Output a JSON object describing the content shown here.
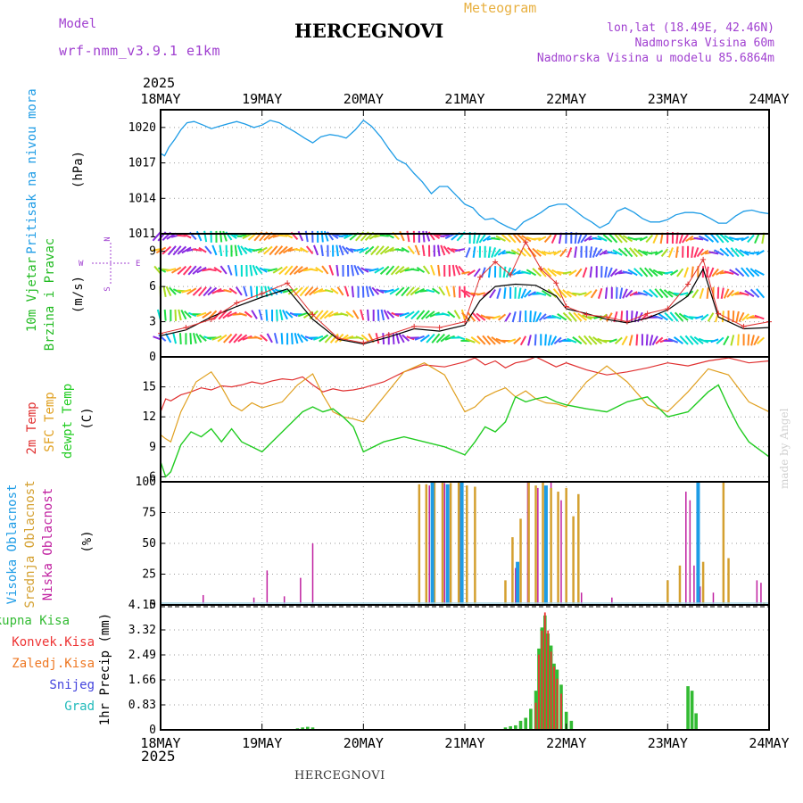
{
  "header": {
    "model_label": "Model",
    "model_name": "wrf-nmm_v3.9.1 e1km",
    "station": "HERCEGNOVI",
    "product": "Meteogram",
    "lonlat": "lon,lat (18.49E, 42.46N)",
    "altitude": "Nadmorska Visina 60m",
    "model_altitude": "Nadmorska Visina u modelu 85.6864m",
    "year": "2025",
    "footer_station": "HERCEGNOVI",
    "credit": "made by Angel"
  },
  "colors": {
    "pressure": "#1E9CE6",
    "wind_label": "#22BB22",
    "temp2m": "#E03030",
    "sfc_temp": "#E0A020",
    "dewpoint": "#22CC22",
    "high_cloud": "#1E9CE6",
    "mid_cloud": "#D4A030",
    "low_cloud": "#C020A0",
    "total_precip": "#33BB33",
    "conv_precip": "#EE3333",
    "ice_precip": "#EE7722",
    "snow": "#4444DD",
    "hail": "#22BBBB"
  },
  "chart_data": [
    {
      "type": "line",
      "panel": "pressure",
      "ylabel_left": "Pritisak na nivou mora",
      "unit": "(hPa)",
      "ylim": [
        1011,
        1021.5
      ],
      "yticks": [
        "1020",
        "1017",
        "1014",
        "1011"
      ],
      "x_labels": [
        "18MAY",
        "19MAY",
        "20MAY",
        "21MAY",
        "22MAY",
        "23MAY",
        "24MAY"
      ],
      "grid": true,
      "series": [
        {
          "key": "pressure",
          "x": [
            0,
            0.04,
            0.08,
            0.14,
            0.2,
            0.26,
            0.33,
            0.42,
            0.5,
            0.58,
            0.66,
            0.75,
            0.83,
            0.92,
            1.0,
            1.08,
            1.17,
            1.25,
            1.33,
            1.42,
            1.5,
            1.58,
            1.67,
            1.75,
            1.83,
            1.92,
            2.0,
            2.08,
            2.17,
            2.25,
            2.33,
            2.42,
            2.5,
            2.58,
            2.67,
            2.75,
            2.83,
            2.92,
            3.0,
            3.08,
            3.14,
            3.2,
            3.28,
            3.33,
            3.42,
            3.5,
            3.58,
            3.67,
            3.75,
            3.83,
            3.92,
            4.0,
            4.08,
            4.17,
            4.25,
            4.33,
            4.42,
            4.5,
            4.58,
            4.67,
            4.75,
            4.83,
            4.92,
            5.0,
            5.08,
            5.17,
            5.25,
            5.33,
            5.42,
            5.5,
            5.58,
            5.67,
            5.75,
            5.83,
            5.92,
            6.0
          ],
          "values": [
            1017.8,
            1017.6,
            1018.3,
            1019.0,
            1019.8,
            1020.4,
            1020.5,
            1020.2,
            1019.9,
            1020.1,
            1020.3,
            1020.5,
            1020.3,
            1020.0,
            1020.2,
            1020.6,
            1020.4,
            1020.0,
            1019.6,
            1019.1,
            1018.7,
            1019.2,
            1019.4,
            1019.3,
            1019.1,
            1019.8,
            1020.6,
            1020.1,
            1019.2,
            1018.2,
            1017.3,
            1016.9,
            1016.1,
            1015.4,
            1014.4,
            1015.0,
            1015.0,
            1014.2,
            1013.5,
            1013.2,
            1012.6,
            1012.2,
            1012.3,
            1012.0,
            1011.6,
            1011.3,
            1012.0,
            1012.4,
            1012.8,
            1013.3,
            1013.5,
            1013.5,
            1013.0,
            1012.4,
            1012.0,
            1011.5,
            1011.9,
            1012.9,
            1013.2,
            1012.8,
            1012.3,
            1012.0,
            1012.0,
            1012.2,
            1012.6,
            1012.8,
            1012.8,
            1012.7,
            1012.3,
            1011.9,
            1011.9,
            1012.5,
            1012.9,
            1013.0,
            1012.8,
            1012.7
          ]
        }
      ]
    },
    {
      "type": "line",
      "panel": "wind",
      "ylabel_left_1": "10m Vjetar",
      "ylabel_left_2": "Brzina i Pravac",
      "unit": "(m/s)",
      "ylim": [
        0,
        10.5
      ],
      "yticks": [
        "9",
        "6",
        "3",
        "0"
      ],
      "compass": {
        "n": "N",
        "w": "W",
        "e": "E",
        "s": "S"
      },
      "grid": true,
      "series": [
        {
          "key": "wind_speed",
          "x": [
            0,
            0.25,
            0.5,
            0.75,
            1.0,
            1.25,
            1.5,
            1.75,
            2.0,
            2.25,
            2.5,
            2.75,
            3.0,
            3.15,
            3.3,
            3.5,
            3.7,
            3.9,
            4.0,
            4.2,
            4.4,
            4.6,
            4.8,
            5.0,
            5.2,
            5.35,
            5.5,
            5.75,
            6.0
          ],
          "values": [
            1.8,
            2.3,
            3.4,
            4.3,
            5.1,
            5.8,
            3.2,
            1.5,
            1.1,
            1.7,
            2.4,
            2.2,
            2.7,
            4.8,
            6.0,
            6.2,
            6.1,
            5.2,
            4.1,
            3.7,
            3.2,
            2.9,
            3.3,
            4.0,
            5.2,
            7.5,
            3.4,
            2.4,
            2.5
          ]
        },
        {
          "key": "wind_gust",
          "x": [
            0,
            0.25,
            0.5,
            0.75,
            1.0,
            1.25,
            1.5,
            1.75,
            2.0,
            2.25,
            2.5,
            2.75,
            3.0,
            3.15,
            3.3,
            3.45,
            3.6,
            3.75,
            3.9,
            4.0,
            4.2,
            4.4,
            4.6,
            4.8,
            5.0,
            5.2,
            5.35,
            5.5,
            5.75,
            6.0
          ],
          "values": [
            2.0,
            2.5,
            3.2,
            4.6,
            5.4,
            6.3,
            3.6,
            1.6,
            1.2,
            1.9,
            2.6,
            2.5,
            3.0,
            6.8,
            8.1,
            7.0,
            9.8,
            7.5,
            6.3,
            4.3,
            3.6,
            3.4,
            3.0,
            3.7,
            4.1,
            6.2,
            8.3,
            3.7,
            2.6,
            3.0
          ]
        }
      ],
      "arrow_rows": [
        1.5,
        3.5,
        5.5,
        7.3,
        9.0,
        10.2
      ]
    },
    {
      "type": "line",
      "panel": "temperature",
      "ylabel_left_1": "2m Temp",
      "ylabel_left_2": "SFC Temp",
      "ylabel_left_3": "dewpt Temp",
      "unit": "(C)",
      "ylim": [
        5.5,
        18
      ],
      "yticks": [
        "15",
        "12",
        "9",
        "6"
      ],
      "grid": true,
      "series": [
        {
          "key": "t2m",
          "x": [
            0,
            0.05,
            0.1,
            0.2,
            0.3,
            0.4,
            0.5,
            0.6,
            0.7,
            0.8,
            0.9,
            1.0,
            1.1,
            1.2,
            1.3,
            1.4,
            1.5,
            1.6,
            1.7,
            1.8,
            1.9,
            2.0,
            2.2,
            2.4,
            2.6,
            2.8,
            3.0,
            3.1,
            3.2,
            3.3,
            3.4,
            3.5,
            3.6,
            3.7,
            3.8,
            3.9,
            4.0,
            4.2,
            4.4,
            4.6,
            4.8,
            5.0,
            5.2,
            5.4,
            5.6,
            5.8,
            6.0
          ],
          "values": [
            12.5,
            13.8,
            13.6,
            14.2,
            14.5,
            14.9,
            14.7,
            15.1,
            15.0,
            15.2,
            15.5,
            15.3,
            15.6,
            15.8,
            15.7,
            16.0,
            15.2,
            14.5,
            14.8,
            14.6,
            14.7,
            14.9,
            15.5,
            16.5,
            17.2,
            17.0,
            17.5,
            17.9,
            17.2,
            17.6,
            16.9,
            17.4,
            17.6,
            18.0,
            17.5,
            17.0,
            17.4,
            16.7,
            16.2,
            16.5,
            16.9,
            17.4,
            17.1,
            17.6,
            17.9,
            17.4,
            17.6
          ]
        },
        {
          "key": "tsfc",
          "x": [
            0,
            0.05,
            0.1,
            0.2,
            0.35,
            0.5,
            0.6,
            0.7,
            0.8,
            0.9,
            1.0,
            1.2,
            1.35,
            1.5,
            1.6,
            1.7,
            1.8,
            1.9,
            2.0,
            2.2,
            2.4,
            2.6,
            2.8,
            3.0,
            3.1,
            3.2,
            3.3,
            3.4,
            3.5,
            3.6,
            3.7,
            3.8,
            3.9,
            4.0,
            4.2,
            4.4,
            4.6,
            4.8,
            5.0,
            5.2,
            5.4,
            5.6,
            5.8,
            6.0
          ],
          "values": [
            10.2,
            9.8,
            9.5,
            12.5,
            15.5,
            16.5,
            15.0,
            13.2,
            12.6,
            13.4,
            12.9,
            13.5,
            15.2,
            16.3,
            14.2,
            12.5,
            12.0,
            11.8,
            11.5,
            14.0,
            16.5,
            17.4,
            16.2,
            12.5,
            13.0,
            14.0,
            14.5,
            14.9,
            14.0,
            14.6,
            13.8,
            13.4,
            13.3,
            13.0,
            15.5,
            17.1,
            15.5,
            13.2,
            12.5,
            14.5,
            16.8,
            16.2,
            13.5,
            12.5
          ]
        },
        {
          "key": "dewpt",
          "x": [
            0,
            0.05,
            0.1,
            0.2,
            0.3,
            0.4,
            0.5,
            0.6,
            0.7,
            0.8,
            0.9,
            1.0,
            1.1,
            1.2,
            1.3,
            1.4,
            1.5,
            1.6,
            1.7,
            1.8,
            1.9,
            2.0,
            2.2,
            2.4,
            2.6,
            2.8,
            3.0,
            3.1,
            3.2,
            3.3,
            3.4,
            3.5,
            3.6,
            3.7,
            3.8,
            3.9,
            4.0,
            4.2,
            4.4,
            4.6,
            4.8,
            5.0,
            5.2,
            5.4,
            5.5,
            5.6,
            5.7,
            5.8,
            6.0
          ],
          "values": [
            7.5,
            6.0,
            6.5,
            9.2,
            10.5,
            10.0,
            10.8,
            9.5,
            10.8,
            9.5,
            9.0,
            8.5,
            9.5,
            10.5,
            11.5,
            12.5,
            13.0,
            12.5,
            12.8,
            12.0,
            11.0,
            8.5,
            9.5,
            10.0,
            9.5,
            9.0,
            8.2,
            9.5,
            11.0,
            10.5,
            11.5,
            14.0,
            13.5,
            13.8,
            14.0,
            13.5,
            13.2,
            12.8,
            12.5,
            13.5,
            14.0,
            12.0,
            12.5,
            14.5,
            15.2,
            13.0,
            11.0,
            9.5,
            8.0
          ]
        }
      ]
    },
    {
      "type": "bar",
      "panel": "clouds",
      "ylabel_left_1": "Visoka Oblacnost",
      "ylabel_left_2": "Srednja Oblacnost",
      "ylabel_left_3": "Niska Oblacnost",
      "unit": "(%)",
      "ylim": [
        0,
        100
      ],
      "yticks": [
        "100",
        "75",
        "50",
        "25",
        "0"
      ],
      "grid": true,
      "series": [
        {
          "key": "low",
          "x": [
            0.42,
            0.92,
            1.05,
            1.22,
            1.38,
            1.5,
            2.65,
            2.8,
            2.95,
            3.1,
            3.4,
            3.5,
            3.62,
            3.72,
            3.85,
            3.95,
            4.15,
            4.45,
            5.18,
            5.22,
            5.26,
            5.32,
            5.45,
            5.88,
            5.92
          ],
          "values": [
            8,
            6,
            28,
            7,
            22,
            50,
            97,
            99,
            98,
            60,
            5,
            30,
            100,
            95,
            100,
            85,
            10,
            6,
            92,
            85,
            32,
            15,
            10,
            20,
            18
          ]
        },
        {
          "key": "mid",
          "x": [
            2.55,
            2.62,
            2.7,
            2.78,
            2.86,
            2.94,
            3.02,
            3.1,
            3.4,
            3.47,
            3.55,
            3.63,
            3.7,
            3.77,
            3.85,
            3.92,
            4.0,
            4.07,
            4.12,
            5.0,
            5.12,
            5.35,
            5.55,
            5.6,
            5.95
          ],
          "values": [
            98,
            98,
            100,
            100,
            99,
            100,
            97,
            96,
            20,
            55,
            70,
            100,
            97,
            100,
            95,
            92,
            95,
            72,
            90,
            20,
            32,
            35,
            100,
            38,
            2
          ]
        },
        {
          "key": "high",
          "x": [
            2.68,
            2.83,
            2.97,
            3.52,
            3.8,
            5.3
          ],
          "values": [
            100,
            98,
            100,
            35,
            97,
            100
          ]
        }
      ]
    },
    {
      "type": "bar",
      "panel": "precip",
      "ylabels": [
        "Ukupna Kisa",
        "Konvek.Kisa",
        "Zaledj.Kisa",
        "Snijeg",
        "Grad"
      ],
      "unit": "1hr Precip (mm)",
      "ylim": [
        0,
        4.15
      ],
      "yticks": [
        "4.15",
        "3.32",
        "2.49",
        "1.66",
        "0.83",
        "0"
      ],
      "grid": true,
      "series": [
        {
          "key": "total",
          "x": [
            1.35,
            1.4,
            1.45,
            1.5,
            3.4,
            3.45,
            3.5,
            3.55,
            3.6,
            3.65,
            3.7,
            3.73,
            3.76,
            3.79,
            3.82,
            3.85,
            3.88,
            3.91,
            3.95,
            4.0,
            4.05,
            5.0,
            5.2,
            5.24,
            5.28
          ],
          "values": [
            0.05,
            0.08,
            0.1,
            0.08,
            0.08,
            0.12,
            0.15,
            0.3,
            0.4,
            0.7,
            1.3,
            2.7,
            3.4,
            3.8,
            3.2,
            2.8,
            2.2,
            2.0,
            1.5,
            0.6,
            0.3,
            0.02,
            1.45,
            1.3,
            0.55
          ]
        },
        {
          "key": "convective",
          "x": [
            3.7,
            3.73,
            3.76,
            3.79,
            3.82,
            3.85,
            3.88,
            3.91,
            3.95
          ],
          "values": [
            0.9,
            2.5,
            3.3,
            3.9,
            3.3,
            2.6,
            2.1,
            1.7,
            1.2
          ]
        }
      ]
    }
  ]
}
